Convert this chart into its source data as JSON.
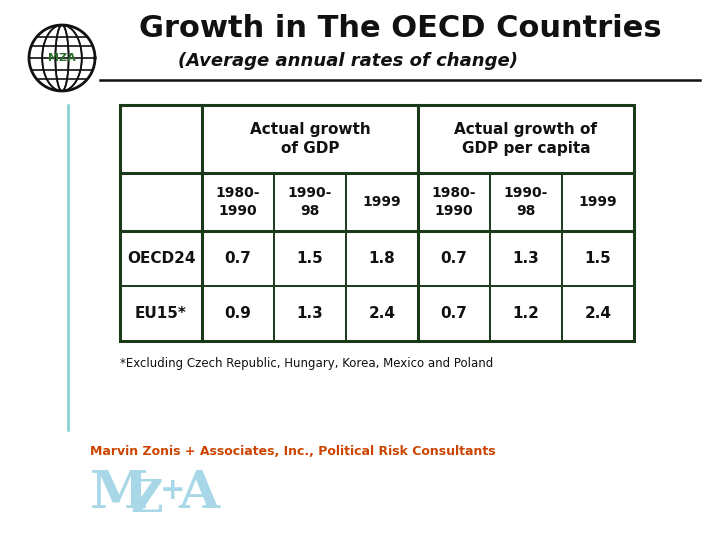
{
  "title": "Growth in The OECD Countries",
  "subtitle": "(Average annual rates of change)",
  "title_color": "#111111",
  "bg_color": "#ffffff",
  "table_border_color": "#1a3a1a",
  "header1": "Actual growth\nof GDP",
  "header2": "Actual growth of\nGDP per capita",
  "col_headers": [
    "1980-\n1990",
    "1990-\n98",
    "1999",
    "1980-\n1990",
    "1990-\n98",
    "1999"
  ],
  "row_labels": [
    "OECD24",
    "EU15*"
  ],
  "data": [
    [
      "0.7",
      "1.5",
      "1.8",
      "0.7",
      "1.3",
      "1.5"
    ],
    [
      "0.9",
      "1.3",
      "2.4",
      "0.7",
      "1.2",
      "2.4"
    ]
  ],
  "footnote": "*Excluding Czech Republic, Hungary, Korea, Mexico and Poland",
  "footer_text": "Marvin Zonis + Associates, Inc., Political Risk Consultants",
  "footer_color": "#cc4400",
  "watermark_color": "#a8d8e8",
  "cyan_line_color": "#7fcfcf",
  "globe_color": "#111111",
  "mza_globe_color": "#2d6e2d"
}
